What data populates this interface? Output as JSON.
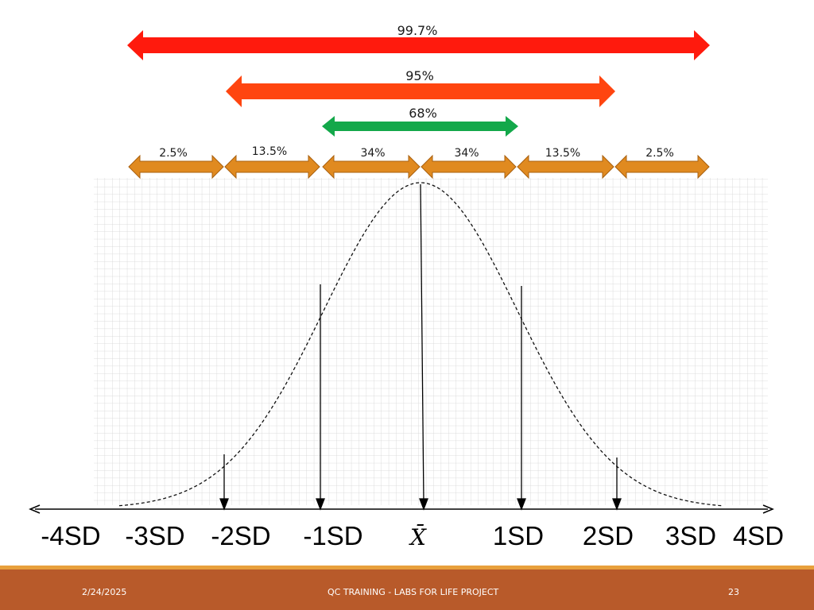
{
  "diagram": {
    "bands": [
      {
        "label": "99.7%",
        "color": "#ff1a0d"
      },
      {
        "label": "95%",
        "color": "#ff4510"
      },
      {
        "label": "68%",
        "color": "#13a84a"
      }
    ],
    "segments": [
      {
        "label": "2.5%",
        "color": "#e08a20"
      },
      {
        "label": "13.5%",
        "color": "#e08a20"
      },
      {
        "label": "34%",
        "color": "#e08a20"
      },
      {
        "label": "34%",
        "color": "#e08a20"
      },
      {
        "label": "13.5%",
        "color": "#e08a20"
      },
      {
        "label": "2.5%",
        "color": "#e08a20"
      }
    ],
    "axis_labels": [
      "-4SD",
      "-3SD",
      "-2SD",
      "-1SD",
      "X̄",
      "1SD",
      "2SD",
      "3SD",
      "4SD"
    ]
  },
  "footer": {
    "date": "2/24/2025",
    "title": "QC TRAINING - LABS FOR LIFE PROJECT",
    "page": "23"
  }
}
